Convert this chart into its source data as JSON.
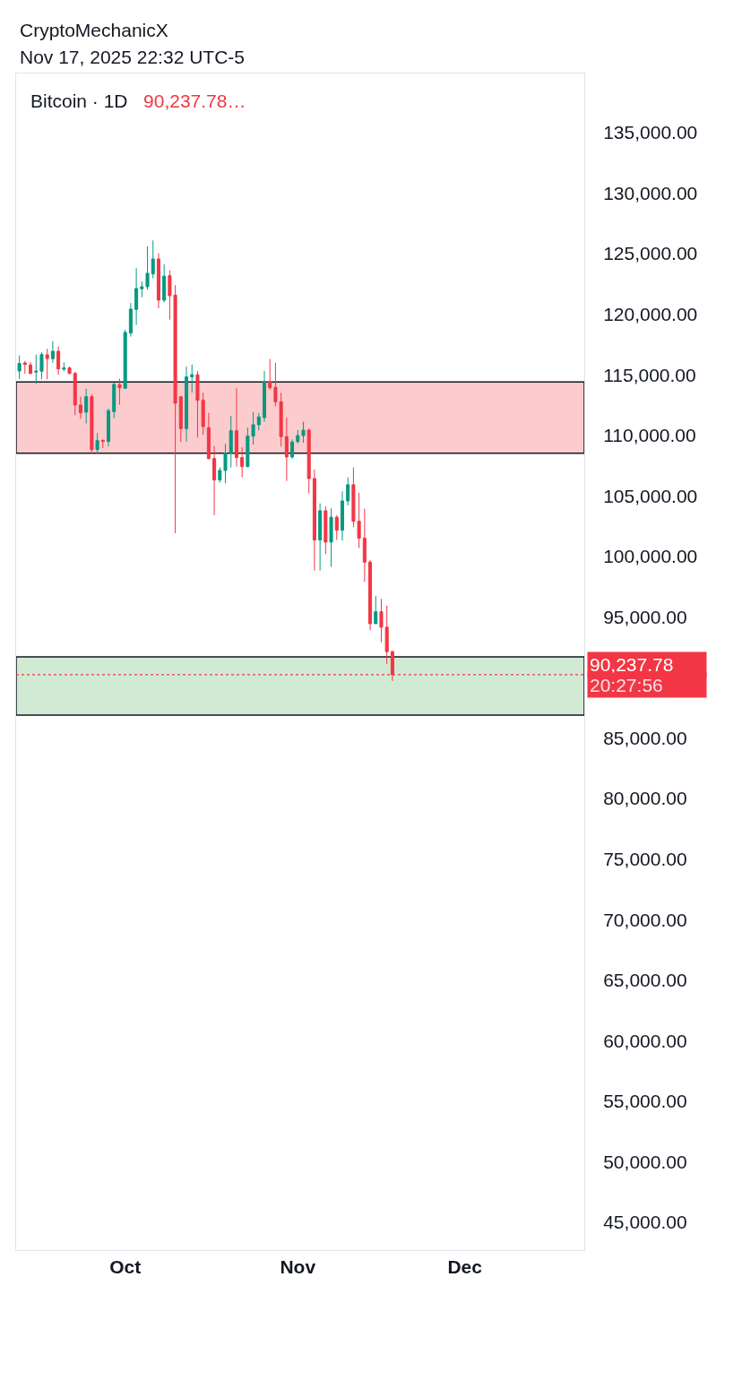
{
  "chart_data": {
    "type": "candlestick",
    "title": "Bitcoin · 1D",
    "subtitle": "90,237.78…",
    "x": [
      "2025-09-12",
      "2025-09-13",
      "2025-09-14",
      "2025-09-15",
      "2025-09-16",
      "2025-09-17",
      "2025-09-18",
      "2025-09-19",
      "2025-09-20",
      "2025-09-21",
      "2025-09-22",
      "2025-09-23",
      "2025-09-24",
      "2025-09-25",
      "2025-09-26",
      "2025-09-27",
      "2025-09-28",
      "2025-09-29",
      "2025-09-30",
      "2025-10-01",
      "2025-10-02",
      "2025-10-03",
      "2025-10-04",
      "2025-10-05",
      "2025-10-06",
      "2025-10-07",
      "2025-10-08",
      "2025-10-09",
      "2025-10-10",
      "2025-10-11",
      "2025-10-12",
      "2025-10-13",
      "2025-10-14",
      "2025-10-15",
      "2025-10-16",
      "2025-10-17",
      "2025-10-18",
      "2025-10-19",
      "2025-10-20",
      "2025-10-21",
      "2025-10-22",
      "2025-10-23",
      "2025-10-24",
      "2025-10-25",
      "2025-10-26",
      "2025-10-27",
      "2025-10-28",
      "2025-10-29",
      "2025-10-30",
      "2025-10-31",
      "2025-11-01",
      "2025-11-02",
      "2025-11-03",
      "2025-11-04",
      "2025-11-05",
      "2025-11-06",
      "2025-11-07",
      "2025-11-08",
      "2025-11-09",
      "2025-11-10",
      "2025-11-11",
      "2025-11-12",
      "2025-11-13",
      "2025-11-14",
      "2025-11-15",
      "2025-11-16",
      "2025-11-17",
      "2025-11-18"
    ],
    "ohlc": [
      [
        115310,
        116590,
        114650,
        115930
      ],
      [
        115980,
        116150,
        115080,
        115850
      ],
      [
        115810,
        116050,
        115040,
        115110
      ],
      [
        115220,
        116650,
        114250,
        115290
      ],
      [
        115290,
        116850,
        114630,
        116670
      ],
      [
        116650,
        117140,
        114630,
        116330
      ],
      [
        116330,
        117780,
        115980,
        116940
      ],
      [
        116940,
        117330,
        114990,
        115480
      ],
      [
        115460,
        116030,
        115290,
        115560
      ],
      [
        115560,
        115670,
        115040,
        115110
      ],
      [
        115110,
        115240,
        111660,
        112500
      ],
      [
        112500,
        113190,
        111370,
        111860
      ],
      [
        111910,
        113830,
        110970,
        113190
      ],
      [
        113190,
        113390,
        108500,
        108820
      ],
      [
        108820,
        110180,
        108500,
        109560
      ],
      [
        109590,
        109640,
        108950,
        109490
      ],
      [
        109490,
        112210,
        109070,
        112040
      ],
      [
        111960,
        114330,
        111410,
        114200
      ],
      [
        114180,
        114670,
        112520,
        113930
      ],
      [
        113880,
        118720,
        113880,
        118500
      ],
      [
        118440,
        120920,
        118150,
        120420
      ],
      [
        120400,
        123800,
        119110,
        122120
      ],
      [
        122100,
        122710,
        121400,
        122270
      ],
      [
        122270,
        125600,
        122030,
        123380
      ],
      [
        123330,
        126100,
        122960,
        124560
      ],
      [
        124560,
        125030,
        120490,
        121160
      ],
      [
        121160,
        124120,
        120990,
        123140
      ],
      [
        123180,
        123620,
        119550,
        121530
      ],
      [
        121580,
        122400,
        101920,
        112650
      ],
      [
        113190,
        113190,
        109440,
        110550
      ],
      [
        110550,
        115660,
        109490,
        114820
      ],
      [
        114820,
        115850,
        113520,
        115000
      ],
      [
        115000,
        115310,
        109810,
        112890
      ],
      [
        112890,
        113520,
        110040,
        110720
      ],
      [
        110630,
        111860,
        108010,
        108080
      ],
      [
        108080,
        109120,
        103400,
        106310
      ],
      [
        106310,
        107350,
        106090,
        107100
      ],
      [
        107100,
        109300,
        106040,
        108530
      ],
      [
        108530,
        111610,
        107340,
        110380
      ],
      [
        110380,
        113880,
        107420,
        108160
      ],
      [
        108160,
        109000,
        106530,
        107420
      ],
      [
        107420,
        110640,
        107350,
        109930
      ],
      [
        109930,
        111910,
        109240,
        110870
      ],
      [
        110870,
        111840,
        110410,
        111520
      ],
      [
        111460,
        115310,
        111120,
        114420
      ],
      [
        114420,
        116300,
        113760,
        113930
      ],
      [
        113960,
        115980,
        112400,
        112770
      ],
      [
        112770,
        113510,
        109070,
        109890
      ],
      [
        109890,
        111460,
        106230,
        108210
      ],
      [
        108210,
        109670,
        108060,
        109440
      ],
      [
        109490,
        110430,
        109320,
        109980
      ],
      [
        109980,
        111120,
        109390,
        110430
      ],
      [
        110430,
        110550,
        105200,
        106430
      ],
      [
        106430,
        107170,
        98830,
        101350
      ],
      [
        101350,
        104380,
        98830,
        103770
      ],
      [
        103770,
        104140,
        100190,
        101180
      ],
      [
        101180,
        103970,
        99130,
        103230
      ],
      [
        103230,
        103400,
        101350,
        102160
      ],
      [
        102160,
        105370,
        101300,
        104580
      ],
      [
        104580,
        106530,
        104210,
        105920
      ],
      [
        105920,
        107340,
        102410,
        102900
      ],
      [
        102900,
        105250,
        100680,
        101500
      ],
      [
        101500,
        103940,
        97900,
        99530
      ],
      [
        99530,
        99700,
        93900,
        94440
      ],
      [
        94440,
        96740,
        94440,
        95430
      ],
      [
        95430,
        96490,
        92910,
        94150
      ],
      [
        94150,
        95920,
        91130,
        92130
      ],
      [
        92130,
        92220,
        89710,
        90237.78
      ]
    ],
    "colors": [
      "#089981",
      "#f23645",
      "#f23645",
      "#089981",
      "#089981",
      "#f23645",
      "#089981",
      "#f23645",
      "#089981",
      "#f23645",
      "#f23645",
      "#f23645",
      "#089981",
      "#f23645",
      "#089981",
      "#f23645",
      "#089981",
      "#089981",
      "#f23645",
      "#089981",
      "#089981",
      "#089981",
      "#089981",
      "#089981",
      "#089981",
      "#f23645",
      "#089981",
      "#f23645",
      "#f23645",
      "#f23645",
      "#089981",
      "#089981",
      "#f23645",
      "#f23645",
      "#f23645",
      "#f23645",
      "#089981",
      "#089981",
      "#089981",
      "#f23645",
      "#f23645",
      "#089981",
      "#089981",
      "#089981",
      "#089981",
      "#f23645",
      "#f23645",
      "#f23645",
      "#f23645",
      "#089981",
      "#089981",
      "#089981",
      "#f23645",
      "#f23645",
      "#089981",
      "#f23645",
      "#089981",
      "#f23645",
      "#089981",
      "#089981",
      "#f23645",
      "#f23645",
      "#f23645",
      "#f23645",
      "#089981",
      "#f23645",
      "#f23645",
      "#f23645"
    ],
    "xlim": [
      "2025-09-11T10:00",
      "2025-12-22T11:00"
    ],
    "xticks": [
      {
        "value": "2025-10-01",
        "label": "Oct"
      },
      {
        "value": "2025-11-01",
        "label": "Nov"
      },
      {
        "value": "2025-12-01",
        "label": "Dec"
      }
    ],
    "ylim": [
      42710,
      139880
    ],
    "yticks": [
      {
        "value": 45000,
        "label": "45,000.00"
      },
      {
        "value": 50000,
        "label": "50,000.00"
      },
      {
        "value": 55000,
        "label": "55,000.00"
      },
      {
        "value": 60000,
        "label": "60,000.00"
      },
      {
        "value": 65000,
        "label": "65,000.00"
      },
      {
        "value": 70000,
        "label": "70,000.00"
      },
      {
        "value": 75000,
        "label": "75,000.00"
      },
      {
        "value": 80000,
        "label": "80,000.00"
      },
      {
        "value": 85000,
        "label": "85,000.00"
      },
      {
        "value": 90000,
        "label": null
      },
      {
        "value": 95000,
        "label": "95,000.00"
      },
      {
        "value": 100000,
        "label": "100,000.00"
      },
      {
        "value": 105000,
        "label": "105,000.00"
      },
      {
        "value": 110000,
        "label": "110,000.00"
      },
      {
        "value": 115000,
        "label": "115,000.00"
      },
      {
        "value": 120000,
        "label": "120,000.00"
      },
      {
        "value": 125000,
        "label": "125,000.00"
      },
      {
        "value": 130000,
        "label": "130,000.00"
      },
      {
        "value": 135000,
        "label": "135,000.00"
      }
    ],
    "bands": [
      {
        "axis": "y",
        "from": 108520,
        "to": 114400,
        "color": "#fccbcd"
      },
      {
        "axis": "y",
        "from": 86900,
        "to": 91700,
        "color": "#d1ead4"
      }
    ],
    "ref_lines": [
      {
        "axis": "y",
        "value": 90237.78,
        "label": "90,237.78",
        "color": "#f23645",
        "line_style": "dotted"
      }
    ],
    "annotations": [
      "CryptoMechanicX",
      "Nov 17, 2025 22:32 UTC-5",
      "20:27:56"
    ]
  }
}
